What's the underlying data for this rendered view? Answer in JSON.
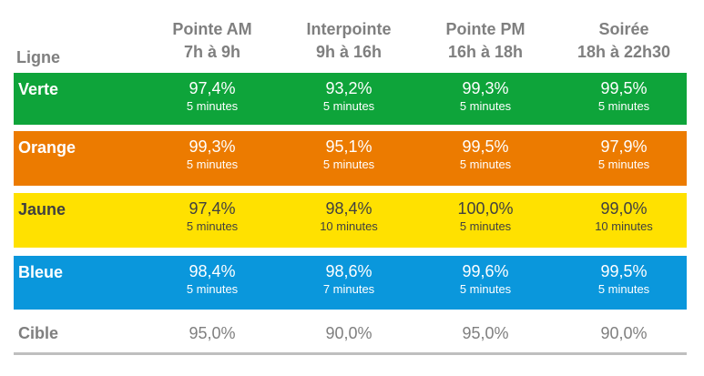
{
  "header": {
    "ligne_label": "Ligne",
    "columns": [
      {
        "name": "Pointe AM",
        "hours": "7h à 9h"
      },
      {
        "name": "Interpointe",
        "hours": "9h à 16h"
      },
      {
        "name": "Pointe PM",
        "hours": "16h à 18h"
      },
      {
        "name": "Soirée",
        "hours": "18h à 22h30"
      }
    ]
  },
  "rows": [
    {
      "name": "Verte",
      "color": "#0ea43a",
      "cells": [
        {
          "pct": "97,4%",
          "freq": "5 minutes"
        },
        {
          "pct": "93,2%",
          "freq": "5 minutes"
        },
        {
          "pct": "99,3%",
          "freq": "5 minutes"
        },
        {
          "pct": "99,5%",
          "freq": "5 minutes"
        }
      ]
    },
    {
      "name": "Orange",
      "color": "#ec7b00",
      "cells": [
        {
          "pct": "99,3%",
          "freq": "5 minutes"
        },
        {
          "pct": "95,1%",
          "freq": "5 minutes"
        },
        {
          "pct": "99,5%",
          "freq": "5 minutes"
        },
        {
          "pct": "97,9%",
          "freq": "5 minutes"
        }
      ]
    },
    {
      "name": "Jaune",
      "color": "#ffe100",
      "cells": [
        {
          "pct": "97,4%",
          "freq": "5 minutes"
        },
        {
          "pct": "98,4%",
          "freq": "10 minutes"
        },
        {
          "pct": "100,0%",
          "freq": "5 minutes"
        },
        {
          "pct": "99,0%",
          "freq": "10 minutes"
        }
      ]
    },
    {
      "name": "Bleue",
      "color": "#0a97dc",
      "cells": [
        {
          "pct": "98,4%",
          "freq": "5 minutes"
        },
        {
          "pct": "98,6%",
          "freq": "7 minutes"
        },
        {
          "pct": "99,6%",
          "freq": "5 minutes"
        },
        {
          "pct": "99,5%",
          "freq": "5 minutes"
        }
      ]
    }
  ],
  "cible": {
    "name": "Cible",
    "values": [
      "95,0%",
      "90,0%",
      "95,0%",
      "90,0%"
    ]
  }
}
